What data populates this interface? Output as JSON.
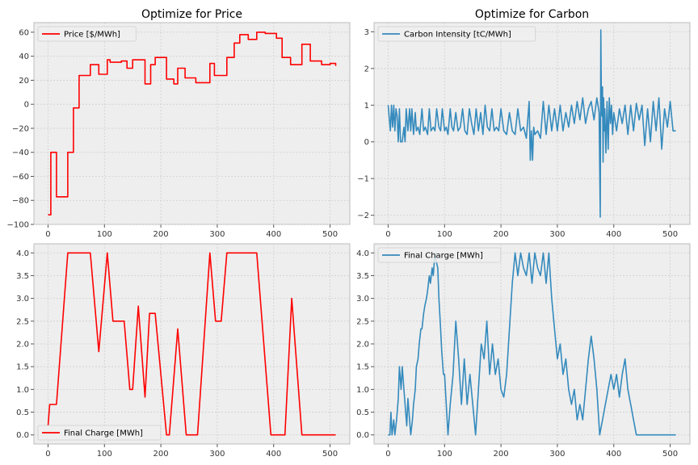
{
  "chart_data": [
    {
      "type": "line",
      "title": "Optimize for Price",
      "xlim": [
        -25,
        535
      ],
      "ylim": [
        -100,
        68
      ],
      "xticks": [
        0,
        100,
        200,
        300,
        400,
        500
      ],
      "yticks": [
        -100,
        -80,
        -60,
        -40,
        -20,
        0,
        20,
        40,
        60
      ],
      "tick_labels_x": [
        "0",
        "100",
        "200",
        "300",
        "400",
        "500"
      ],
      "tick_labels_y": [
        "−100",
        "−80",
        "−60",
        "−40",
        "−20",
        "0",
        "20",
        "40",
        "60"
      ],
      "grid": true,
      "legend": "top-left",
      "series": [
        {
          "name": "Price [$/MWh]",
          "color": "#ff0000",
          "style": "step",
          "x": [
            0,
            3,
            5,
            15,
            35,
            45,
            55,
            62,
            75,
            78,
            90,
            92,
            105,
            110,
            115,
            130,
            140,
            150,
            160,
            172,
            180,
            182,
            190,
            195,
            210,
            223,
            230,
            243,
            262,
            287,
            295,
            305,
            317,
            330,
            340,
            355,
            370,
            385,
            405,
            415,
            430,
            450,
            465,
            485,
            500,
            510
          ],
          "y": [
            -92,
            -92,
            -40,
            -77,
            -40,
            -3,
            24,
            24,
            33,
            33,
            25,
            25,
            37,
            35,
            35,
            36,
            30,
            37,
            37,
            17,
            17,
            33,
            39,
            39,
            21,
            17,
            30,
            22,
            18,
            34,
            24,
            24,
            39,
            51,
            58,
            54,
            60,
            59,
            55,
            39,
            33,
            50,
            36,
            33,
            34,
            32
          ]
        }
      ]
    },
    {
      "type": "line",
      "title": "Optimize for Carbon",
      "xlim": [
        -25,
        535
      ],
      "ylim": [
        -2.25,
        3.25
      ],
      "xticks": [
        0,
        100,
        200,
        300,
        400,
        500
      ],
      "yticks": [
        -2,
        -1,
        0,
        1,
        2,
        3
      ],
      "tick_labels_x": [
        "0",
        "100",
        "200",
        "300",
        "400",
        "500"
      ],
      "tick_labels_y": [
        "−2",
        "−1",
        "0",
        "1",
        "2",
        "3"
      ],
      "grid": true,
      "legend": "top-left",
      "series": [
        {
          "name": "Carbon Intensity [tC/MWh]",
          "color": "#348abd",
          "x": [
            0,
            4,
            6,
            8,
            10,
            12,
            14,
            16,
            18,
            20,
            22,
            25,
            28,
            30,
            32,
            35,
            38,
            40,
            42,
            45,
            48,
            50,
            53,
            56,
            60,
            63,
            66,
            70,
            73,
            76,
            80,
            83,
            86,
            90,
            93,
            96,
            100,
            103,
            106,
            110,
            113,
            116,
            120,
            124,
            128,
            132,
            136,
            140,
            144,
            148,
            152,
            156,
            160,
            164,
            168,
            172,
            176,
            180,
            184,
            188,
            192,
            196,
            200,
            205,
            210,
            215,
            220,
            225,
            230,
            235,
            240,
            245,
            250,
            252,
            254,
            256,
            258,
            260,
            265,
            270,
            275,
            280,
            285,
            290,
            295,
            300,
            305,
            310,
            315,
            320,
            325,
            330,
            335,
            340,
            345,
            350,
            355,
            360,
            365,
            370,
            374,
            376,
            377,
            378,
            379,
            380,
            381,
            382,
            383,
            384,
            386,
            388,
            390,
            392,
            394,
            396,
            398,
            400,
            405,
            410,
            415,
            420,
            425,
            430,
            435,
            440,
            445,
            450,
            455,
            460,
            465,
            470,
            475,
            480,
            485,
            490,
            495,
            500,
            505,
            510
          ],
          "y": [
            1.0,
            0.3,
            1.0,
            0.4,
            1.0,
            0.3,
            0.9,
            0.7,
            0.0,
            0.9,
            0.0,
            0.0,
            0.4,
            0.0,
            0.9,
            0.3,
            0.9,
            0.3,
            0.9,
            0.2,
            0.8,
            0.3,
            0.4,
            0.2,
            0.9,
            0.3,
            0.4,
            0.2,
            0.9,
            0.3,
            0.4,
            0.3,
            0.9,
            0.4,
            0.3,
            0.9,
            0.3,
            0.4,
            0.2,
            0.9,
            0.4,
            0.3,
            0.8,
            0.3,
            0.4,
            0.9,
            0.3,
            0.2,
            0.9,
            0.5,
            0.2,
            0.9,
            0.3,
            0.8,
            0.2,
            1.0,
            0.4,
            0.3,
            0.9,
            0.3,
            0.4,
            0.3,
            0.9,
            0.3,
            0.2,
            0.8,
            0.3,
            0.2,
            0.9,
            0.3,
            0.4,
            0.1,
            1.1,
            -0.5,
            0.3,
            -0.5,
            0.4,
            0.2,
            0.3,
            0.1,
            1.1,
            0.2,
            1.0,
            0.3,
            0.9,
            0.3,
            1.0,
            0.3,
            0.8,
            0.4,
            1.0,
            0.5,
            1.1,
            0.6,
            1.2,
            0.5,
            0.9,
            1.1,
            0.6,
            1.2,
            0.8,
            -2.05,
            3.05,
            1.2,
            0.7,
            1.5,
            -0.55,
            1.2,
            0.3,
            0.9,
            -0.3,
            1.1,
            -0.2,
            1.2,
            0.5,
            1.0,
            0.2,
            0.8,
            0.3,
            0.9,
            0.5,
            1.0,
            0.2,
            1.0,
            0.3,
            1.05,
            0.6,
            1.0,
            -0.1,
            0.9,
            0.0,
            1.1,
            0.3,
            1.2,
            -0.2,
            0.9,
            0.4,
            1.1,
            0.3,
            0.3
          ]
        }
      ]
    },
    {
      "type": "line",
      "title": "",
      "xlim": [
        -25,
        535
      ],
      "ylim": [
        -0.2,
        4.2
      ],
      "xticks": [
        0,
        100,
        200,
        300,
        400,
        500
      ],
      "yticks": [
        0.0,
        0.5,
        1.0,
        1.5,
        2.0,
        2.5,
        3.0,
        3.5,
        4.0
      ],
      "tick_labels_x": [
        "0",
        "100",
        "200",
        "300",
        "400",
        "500"
      ],
      "tick_labels_y": [
        "0.0",
        "0.5",
        "1.0",
        "1.5",
        "2.0",
        "2.5",
        "3.0",
        "3.5",
        "4.0"
      ],
      "grid": true,
      "legend": "bottom-left",
      "series": [
        {
          "name": "Final Charge [MWh]",
          "color": "#ff0000",
          "x": [
            0,
            3,
            15,
            35,
            75,
            90,
            105,
            115,
            135,
            145,
            150,
            160,
            172,
            180,
            190,
            210,
            215,
            230,
            245,
            265,
            287,
            297,
            307,
            317,
            330,
            360,
            370,
            395,
            420,
            432,
            450,
            470,
            510
          ],
          "y": [
            0.2,
            0.67,
            0.67,
            4.0,
            4.0,
            1.83,
            4.0,
            2.5,
            2.5,
            1.0,
            1.0,
            2.83,
            0.83,
            2.67,
            2.67,
            0.0,
            0.0,
            2.33,
            0.0,
            0.0,
            4.0,
            2.5,
            2.5,
            4.0,
            4.0,
            4.0,
            4.0,
            0.0,
            0.0,
            3.0,
            0.0,
            0.0,
            0.0
          ]
        }
      ]
    },
    {
      "type": "line",
      "title": "",
      "xlim": [
        -25,
        535
      ],
      "ylim": [
        -0.2,
        4.2
      ],
      "xticks": [
        0,
        100,
        200,
        300,
        400,
        500
      ],
      "yticks": [
        0.0,
        0.5,
        1.0,
        1.5,
        2.0,
        2.5,
        3.0,
        3.5,
        4.0
      ],
      "tick_labels_x": [
        "0",
        "100",
        "200",
        "300",
        "400",
        "500"
      ],
      "tick_labels_y": [
        "0.0",
        "0.5",
        "1.0",
        "1.5",
        "2.0",
        "2.5",
        "3.0",
        "3.5",
        "4.0"
      ],
      "grid": true,
      "legend": "top-left",
      "series": [
        {
          "name": "Final Charge [MWh]",
          "color": "#348abd",
          "x": [
            0,
            3,
            5,
            7,
            10,
            12,
            15,
            18,
            20,
            23,
            25,
            28,
            30,
            33,
            35,
            38,
            40,
            43,
            45,
            48,
            50,
            53,
            55,
            58,
            60,
            63,
            65,
            68,
            70,
            73,
            75,
            78,
            80,
            83,
            85,
            88,
            90,
            93,
            95,
            98,
            100,
            103,
            106,
            110,
            115,
            120,
            125,
            130,
            135,
            140,
            145,
            150,
            155,
            160,
            165,
            170,
            175,
            180,
            185,
            190,
            195,
            200,
            205,
            210,
            215,
            220,
            225,
            230,
            235,
            240,
            245,
            250,
            255,
            260,
            265,
            270,
            275,
            280,
            285,
            290,
            295,
            300,
            305,
            310,
            315,
            320,
            325,
            330,
            335,
            340,
            345,
            350,
            355,
            360,
            365,
            370,
            375,
            380,
            385,
            390,
            395,
            400,
            405,
            410,
            415,
            420,
            425,
            430,
            435,
            440,
            445,
            450,
            455,
            460,
            465,
            470,
            475,
            480,
            485,
            490,
            495,
            500,
            505,
            510
          ],
          "y": [
            0.0,
            0.0,
            0.5,
            0.0,
            0.33,
            0.0,
            0.33,
            0.8,
            1.5,
            1.0,
            1.5,
            1.0,
            0.67,
            0.2,
            0.8,
            0.33,
            0.0,
            0.33,
            0.67,
            1.0,
            1.5,
            1.67,
            2.0,
            2.33,
            2.33,
            2.67,
            2.83,
            3.0,
            3.17,
            3.5,
            3.33,
            3.67,
            3.5,
            4.0,
            3.83,
            3.67,
            3.0,
            2.33,
            1.83,
            1.33,
            1.33,
            0.67,
            0.0,
            0.67,
            1.33,
            2.5,
            1.67,
            0.67,
            1.67,
            0.67,
            1.33,
            0.67,
            0.0,
            1.0,
            2.0,
            1.67,
            2.5,
            1.33,
            2.0,
            1.33,
            1.67,
            1.0,
            0.83,
            1.33,
            2.33,
            3.33,
            4.0,
            3.5,
            4.0,
            3.67,
            3.5,
            4.0,
            3.33,
            4.0,
            3.67,
            3.5,
            4.0,
            3.33,
            4.0,
            3.0,
            2.33,
            1.67,
            2.0,
            1.33,
            1.67,
            1.0,
            0.67,
            1.0,
            0.33,
            0.67,
            0.33,
            1.0,
            1.67,
            2.17,
            1.67,
            1.0,
            0.0,
            0.33,
            0.67,
            1.0,
            1.33,
            1.0,
            1.33,
            0.83,
            1.33,
            1.67,
            1.0,
            0.67,
            0.33,
            0.0,
            0.0,
            0.0,
            0.0,
            0.0,
            0.0,
            0.0,
            0.0,
            0.0,
            0.0,
            0.0,
            0.0,
            0.0,
            0.0,
            0.0
          ]
        }
      ]
    }
  ]
}
